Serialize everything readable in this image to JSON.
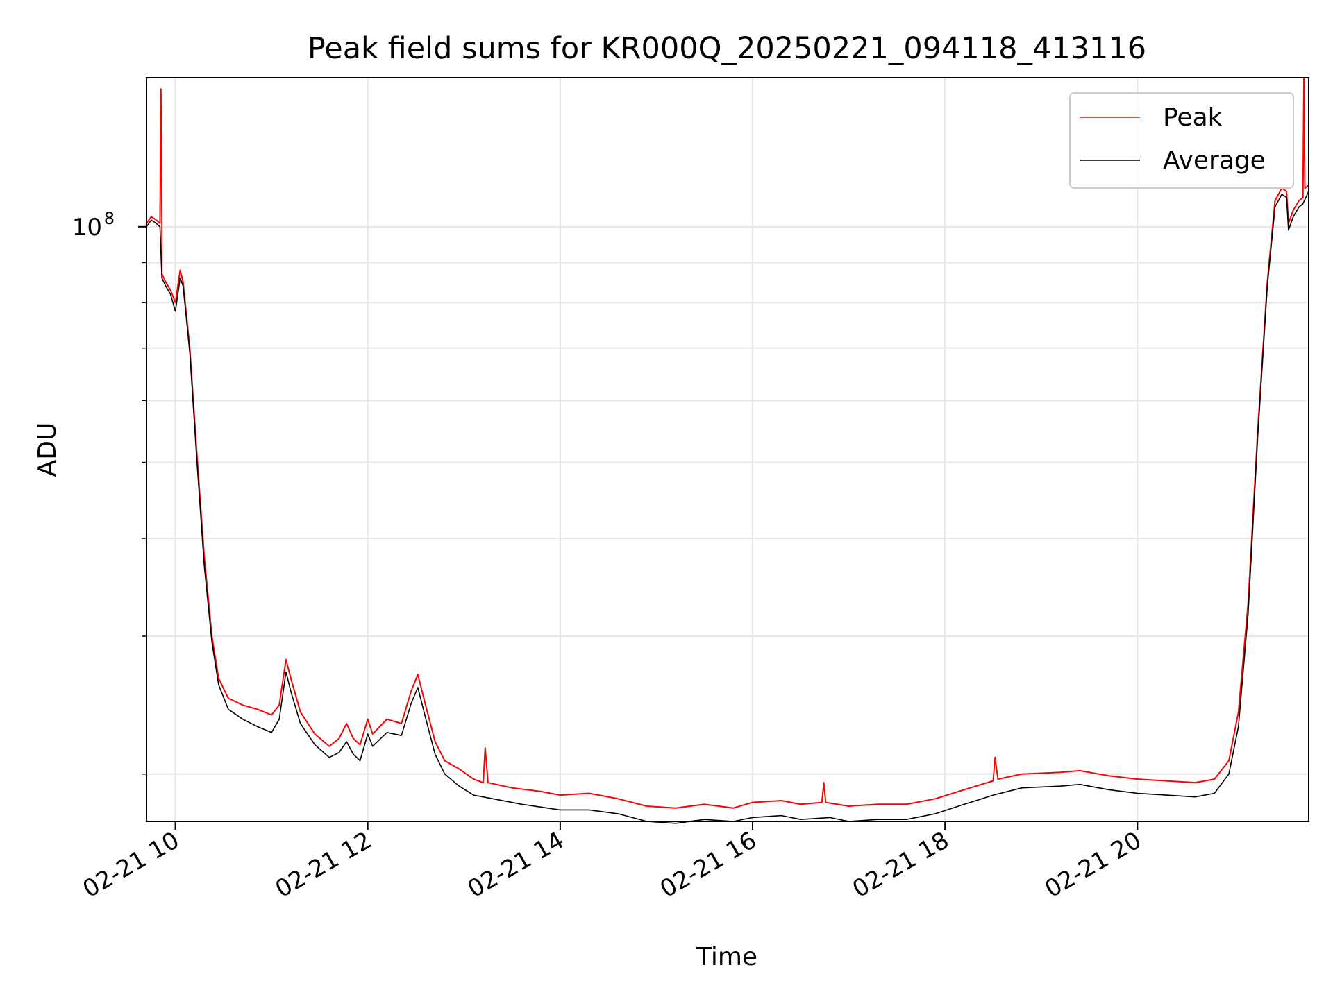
{
  "chart_data": {
    "type": "line",
    "title": "Peak field sums for KR000Q_20250221_094118_413116",
    "xlabel": "Time",
    "ylabel": "ADU",
    "y_scale": "log",
    "grid": true,
    "legend_position": "top-right",
    "x_ticks": [
      "02-21 10",
      "02-21 12",
      "02-21 14",
      "02-21 16",
      "02-21 18",
      "02-21 20"
    ],
    "x_tick_hours": [
      10,
      12,
      14,
      16,
      18,
      20
    ],
    "y_tick_major": {
      "value": 100000000,
      "base": "10",
      "exponent": "8"
    },
    "y_minor_ticks": [
      20000000,
      30000000,
      40000000,
      50000000,
      60000000,
      70000000,
      80000000,
      90000000
    ],
    "xlim_hours": [
      9.7,
      21.78
    ],
    "ylim": [
      17400000,
      155000000
    ],
    "series": [
      {
        "name": "Peak",
        "color": "#ff0000",
        "points": [
          [
            9.7,
            101000000
          ],
          [
            9.75,
            103000000
          ],
          [
            9.8,
            102000000
          ],
          [
            9.84,
            101000000
          ],
          [
            9.85,
            150000000
          ],
          [
            9.86,
            101000000
          ],
          [
            9.86,
            87000000
          ],
          [
            9.9,
            85000000
          ],
          [
            9.95,
            83000000
          ],
          [
            10.0,
            80000000
          ],
          [
            10.05,
            88000000
          ],
          [
            10.08,
            85000000
          ],
          [
            10.15,
            70000000
          ],
          [
            10.22,
            52000000
          ],
          [
            10.3,
            38000000
          ],
          [
            10.38,
            30000000
          ],
          [
            10.45,
            26500000
          ],
          [
            10.55,
            25000000
          ],
          [
            10.7,
            24500000
          ],
          [
            10.85,
            24200000
          ],
          [
            11.0,
            23800000
          ],
          [
            11.08,
            24500000
          ],
          [
            11.15,
            28000000
          ],
          [
            11.2,
            26500000
          ],
          [
            11.3,
            24000000
          ],
          [
            11.45,
            22500000
          ],
          [
            11.6,
            21700000
          ],
          [
            11.7,
            22200000
          ],
          [
            11.78,
            23200000
          ],
          [
            11.85,
            22200000
          ],
          [
            11.92,
            21800000
          ],
          [
            12.0,
            23500000
          ],
          [
            12.05,
            22500000
          ],
          [
            12.2,
            23500000
          ],
          [
            12.35,
            23200000
          ],
          [
            12.45,
            25500000
          ],
          [
            12.52,
            26800000
          ],
          [
            12.6,
            24500000
          ],
          [
            12.7,
            22000000
          ],
          [
            12.8,
            20800000
          ],
          [
            12.95,
            20300000
          ],
          [
            13.1,
            19700000
          ],
          [
            13.2,
            19500000
          ],
          [
            13.22,
            21600000
          ],
          [
            13.25,
            19500000
          ],
          [
            13.5,
            19200000
          ],
          [
            13.8,
            19000000
          ],
          [
            14.0,
            18800000
          ],
          [
            14.3,
            18900000
          ],
          [
            14.6,
            18600000
          ],
          [
            14.9,
            18200000
          ],
          [
            15.2,
            18100000
          ],
          [
            15.5,
            18300000
          ],
          [
            15.8,
            18100000
          ],
          [
            16.0,
            18400000
          ],
          [
            16.3,
            18500000
          ],
          [
            16.5,
            18300000
          ],
          [
            16.72,
            18400000
          ],
          [
            16.74,
            19500000
          ],
          [
            16.76,
            18400000
          ],
          [
            17.0,
            18200000
          ],
          [
            17.3,
            18300000
          ],
          [
            17.6,
            18300000
          ],
          [
            17.9,
            18600000
          ],
          [
            18.2,
            19100000
          ],
          [
            18.5,
            19600000
          ],
          [
            18.52,
            21000000
          ],
          [
            18.55,
            19700000
          ],
          [
            18.8,
            20000000
          ],
          [
            19.2,
            20100000
          ],
          [
            19.4,
            20200000
          ],
          [
            19.7,
            19900000
          ],
          [
            20.0,
            19700000
          ],
          [
            20.3,
            19600000
          ],
          [
            20.6,
            19500000
          ],
          [
            20.8,
            19700000
          ],
          [
            20.95,
            20800000
          ],
          [
            21.05,
            24000000
          ],
          [
            21.15,
            33000000
          ],
          [
            21.25,
            55000000
          ],
          [
            21.35,
            85000000
          ],
          [
            21.43,
            108000000
          ],
          [
            21.5,
            112000000
          ],
          [
            21.55,
            111000000
          ],
          [
            21.57,
            101000000
          ],
          [
            21.62,
            105000000
          ],
          [
            21.68,
            108000000
          ],
          [
            21.72,
            109000000
          ],
          [
            21.73,
            155000000
          ],
          [
            21.74,
            112000000
          ],
          [
            21.78,
            113000000
          ]
        ]
      },
      {
        "name": "Average",
        "color": "#000000",
        "points": [
          [
            9.7,
            100000000
          ],
          [
            9.75,
            102000000
          ],
          [
            9.8,
            101000000
          ],
          [
            9.84,
            100000000
          ],
          [
            9.86,
            86000000
          ],
          [
            9.9,
            84000000
          ],
          [
            9.95,
            82000000
          ],
          [
            10.0,
            78000000
          ],
          [
            10.05,
            86000000
          ],
          [
            10.08,
            84000000
          ],
          [
            10.15,
            69000000
          ],
          [
            10.22,
            51000000
          ],
          [
            10.3,
            37000000
          ],
          [
            10.38,
            29500000
          ],
          [
            10.45,
            26000000
          ],
          [
            10.55,
            24200000
          ],
          [
            10.7,
            23500000
          ],
          [
            10.85,
            23000000
          ],
          [
            11.0,
            22600000
          ],
          [
            11.08,
            23500000
          ],
          [
            11.15,
            27000000
          ],
          [
            11.2,
            25500000
          ],
          [
            11.3,
            23200000
          ],
          [
            11.45,
            21800000
          ],
          [
            11.6,
            21000000
          ],
          [
            11.7,
            21300000
          ],
          [
            11.78,
            22000000
          ],
          [
            11.85,
            21200000
          ],
          [
            11.92,
            20800000
          ],
          [
            12.0,
            22500000
          ],
          [
            12.05,
            21700000
          ],
          [
            12.2,
            22600000
          ],
          [
            12.35,
            22400000
          ],
          [
            12.45,
            24600000
          ],
          [
            12.52,
            25800000
          ],
          [
            12.6,
            23600000
          ],
          [
            12.7,
            21200000
          ],
          [
            12.8,
            20000000
          ],
          [
            12.95,
            19300000
          ],
          [
            13.1,
            18800000
          ],
          [
            13.3,
            18600000
          ],
          [
            13.6,
            18300000
          ],
          [
            14.0,
            18000000
          ],
          [
            14.3,
            18000000
          ],
          [
            14.6,
            17800000
          ],
          [
            14.9,
            17400000
          ],
          [
            15.2,
            17300000
          ],
          [
            15.5,
            17500000
          ],
          [
            15.8,
            17400000
          ],
          [
            16.0,
            17600000
          ],
          [
            16.3,
            17700000
          ],
          [
            16.5,
            17500000
          ],
          [
            16.8,
            17600000
          ],
          [
            17.0,
            17400000
          ],
          [
            17.3,
            17500000
          ],
          [
            17.6,
            17500000
          ],
          [
            17.9,
            17800000
          ],
          [
            18.2,
            18300000
          ],
          [
            18.5,
            18800000
          ],
          [
            18.8,
            19200000
          ],
          [
            19.2,
            19300000
          ],
          [
            19.4,
            19400000
          ],
          [
            19.7,
            19100000
          ],
          [
            20.0,
            18900000
          ],
          [
            20.3,
            18800000
          ],
          [
            20.6,
            18700000
          ],
          [
            20.8,
            18900000
          ],
          [
            20.95,
            20000000
          ],
          [
            21.05,
            23000000
          ],
          [
            21.15,
            32000000
          ],
          [
            21.25,
            54000000
          ],
          [
            21.35,
            84000000
          ],
          [
            21.43,
            106000000
          ],
          [
            21.5,
            110000000
          ],
          [
            21.55,
            109000000
          ],
          [
            21.57,
            99000000
          ],
          [
            21.62,
            103000000
          ],
          [
            21.68,
            106000000
          ],
          [
            21.72,
            107000000
          ],
          [
            21.78,
            111000000
          ]
        ]
      }
    ]
  }
}
